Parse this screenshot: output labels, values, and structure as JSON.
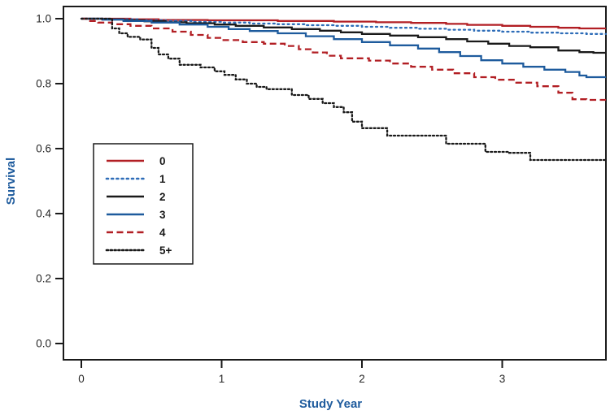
{
  "figure": {
    "background": "#ffffff",
    "frame_color": "#1a1a1a"
  },
  "colors": {
    "red": "#b21f24",
    "blue": "#1e5b9d",
    "blue_dotted": "#2e6db8",
    "black": "#1a1a1a",
    "axis_label_blue": "#1e5b9d",
    "tick_text": "#262626"
  },
  "chart_data": {
    "type": "line",
    "subtype": "kaplan-meier-step",
    "title": "",
    "xlabel": "Study Year",
    "ylabel": "Survival",
    "xlim": [
      0,
      3.74
    ],
    "ylim": [
      0,
      1.0
    ],
    "grid": false,
    "legend_position": "inside-left",
    "x_ticks": [
      {
        "v": 0,
        "label": "0"
      },
      {
        "v": 1,
        "label": "1"
      },
      {
        "v": 2,
        "label": "2"
      },
      {
        "v": 3,
        "label": "3"
      }
    ],
    "y_ticks": [
      {
        "v": 0.0,
        "label": "0.0"
      },
      {
        "v": 0.2,
        "label": "0.2"
      },
      {
        "v": 0.4,
        "label": "0.4"
      },
      {
        "v": 0.6,
        "label": "0.6"
      },
      {
        "v": 0.8,
        "label": "0.8"
      },
      {
        "v": 1.0,
        "label": "1.0"
      }
    ],
    "series": [
      {
        "name": "0",
        "color": "#b21f24",
        "style": "solid",
        "points": [
          [
            0,
            1.0
          ],
          [
            0.35,
            0.998
          ],
          [
            0.55,
            0.996
          ],
          [
            0.9,
            0.995
          ],
          [
            1.4,
            0.993
          ],
          [
            1.8,
            0.991
          ],
          [
            2.1,
            0.989
          ],
          [
            2.35,
            0.987
          ],
          [
            2.6,
            0.984
          ],
          [
            2.75,
            0.981
          ],
          [
            3.0,
            0.978
          ],
          [
            3.2,
            0.975
          ],
          [
            3.4,
            0.972
          ],
          [
            3.55,
            0.97
          ]
        ]
      },
      {
        "name": "1",
        "color": "#2e6db8",
        "style": "dotted",
        "points": [
          [
            0,
            1.0
          ],
          [
            0.2,
            0.998
          ],
          [
            0.4,
            0.995
          ],
          [
            0.6,
            0.993
          ],
          [
            0.8,
            0.99
          ],
          [
            1.0,
            0.988
          ],
          [
            1.2,
            0.985
          ],
          [
            1.4,
            0.983
          ],
          [
            1.6,
            0.98
          ],
          [
            1.8,
            0.978
          ],
          [
            2.0,
            0.975
          ],
          [
            2.2,
            0.972
          ],
          [
            2.4,
            0.969
          ],
          [
            2.6,
            0.966
          ],
          [
            2.8,
            0.963
          ],
          [
            3.0,
            0.96
          ],
          [
            3.2,
            0.957
          ],
          [
            3.4,
            0.955
          ],
          [
            3.6,
            0.953
          ]
        ]
      },
      {
        "name": "2",
        "color": "#1a1a1a",
        "style": "solid",
        "points": [
          [
            0,
            1.0
          ],
          [
            0.15,
            0.998
          ],
          [
            0.3,
            0.995
          ],
          [
            0.45,
            0.992
          ],
          [
            0.6,
            0.989
          ],
          [
            0.75,
            0.986
          ],
          [
            0.95,
            0.982
          ],
          [
            1.1,
            0.978
          ],
          [
            1.3,
            0.973
          ],
          [
            1.5,
            0.968
          ],
          [
            1.7,
            0.963
          ],
          [
            1.85,
            0.958
          ],
          [
            2.0,
            0.953
          ],
          [
            2.2,
            0.948
          ],
          [
            2.4,
            0.943
          ],
          [
            2.6,
            0.937
          ],
          [
            2.75,
            0.93
          ],
          [
            2.9,
            0.923
          ],
          [
            3.05,
            0.916
          ],
          [
            3.2,
            0.912
          ],
          [
            3.4,
            0.902
          ],
          [
            3.55,
            0.897
          ],
          [
            3.65,
            0.895
          ]
        ]
      },
      {
        "name": "3",
        "color": "#1e5b9d",
        "style": "solid",
        "points": [
          [
            0,
            1.0
          ],
          [
            0.15,
            0.997
          ],
          [
            0.3,
            0.993
          ],
          [
            0.5,
            0.988
          ],
          [
            0.7,
            0.982
          ],
          [
            0.9,
            0.975
          ],
          [
            1.05,
            0.968
          ],
          [
            1.2,
            0.962
          ],
          [
            1.4,
            0.955
          ],
          [
            1.6,
            0.946
          ],
          [
            1.8,
            0.937
          ],
          [
            2.0,
            0.928
          ],
          [
            2.2,
            0.918
          ],
          [
            2.4,
            0.908
          ],
          [
            2.55,
            0.897
          ],
          [
            2.7,
            0.885
          ],
          [
            2.85,
            0.872
          ],
          [
            3.0,
            0.862
          ],
          [
            3.15,
            0.852
          ],
          [
            3.3,
            0.843
          ],
          [
            3.45,
            0.836
          ],
          [
            3.55,
            0.825
          ],
          [
            3.6,
            0.82
          ]
        ]
      },
      {
        "name": "4",
        "color": "#b21f24",
        "style": "dashed",
        "points": [
          [
            0,
            1.0
          ],
          [
            0.05,
            0.993
          ],
          [
            0.12,
            0.988
          ],
          [
            0.22,
            0.983
          ],
          [
            0.35,
            0.978
          ],
          [
            0.5,
            0.97
          ],
          [
            0.65,
            0.96
          ],
          [
            0.78,
            0.95
          ],
          [
            0.9,
            0.941
          ],
          [
            1.0,
            0.934
          ],
          [
            1.15,
            0.928
          ],
          [
            1.3,
            0.923
          ],
          [
            1.45,
            0.916
          ],
          [
            1.55,
            0.906
          ],
          [
            1.65,
            0.896
          ],
          [
            1.75,
            0.886
          ],
          [
            1.85,
            0.878
          ],
          [
            2.05,
            0.871
          ],
          [
            2.2,
            0.862
          ],
          [
            2.35,
            0.852
          ],
          [
            2.5,
            0.843
          ],
          [
            2.65,
            0.832
          ],
          [
            2.8,
            0.82
          ],
          [
            2.95,
            0.812
          ],
          [
            3.1,
            0.803
          ],
          [
            3.25,
            0.792
          ],
          [
            3.4,
            0.772
          ],
          [
            3.5,
            0.752
          ],
          [
            3.6,
            0.75
          ]
        ]
      },
      {
        "name": "5+",
        "color": "#1a1a1a",
        "style": "dotted-dense",
        "points": [
          [
            0,
            1.0
          ],
          [
            0.22,
            0.97
          ],
          [
            0.27,
            0.955
          ],
          [
            0.33,
            0.944
          ],
          [
            0.42,
            0.936
          ],
          [
            0.5,
            0.91
          ],
          [
            0.55,
            0.89
          ],
          [
            0.62,
            0.877
          ],
          [
            0.7,
            0.858
          ],
          [
            0.85,
            0.85
          ],
          [
            0.95,
            0.838
          ],
          [
            1.02,
            0.827
          ],
          [
            1.1,
            0.813
          ],
          [
            1.18,
            0.8
          ],
          [
            1.25,
            0.79
          ],
          [
            1.32,
            0.783
          ],
          [
            1.5,
            0.765
          ],
          [
            1.62,
            0.753
          ],
          [
            1.72,
            0.74
          ],
          [
            1.8,
            0.728
          ],
          [
            1.87,
            0.712
          ],
          [
            1.93,
            0.683
          ],
          [
            2.0,
            0.663
          ],
          [
            2.18,
            0.64
          ],
          [
            2.6,
            0.615
          ],
          [
            2.88,
            0.59
          ],
          [
            3.05,
            0.587
          ],
          [
            3.2,
            0.565
          ]
        ]
      }
    ],
    "legend_items": [
      "0",
      "1",
      "2",
      "3",
      "4",
      "5+"
    ]
  }
}
